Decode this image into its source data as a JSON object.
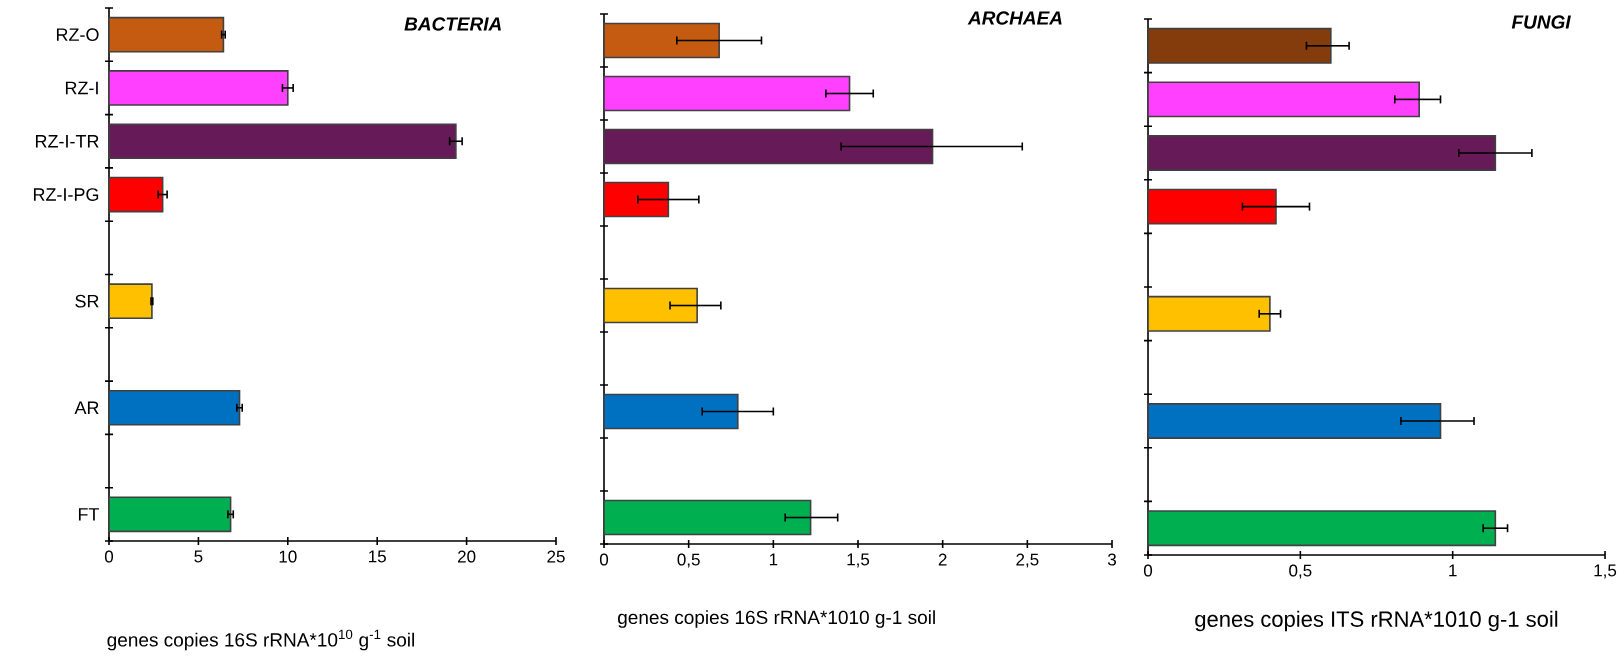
{
  "chart_data": [
    {
      "type": "bar",
      "orientation": "horizontal",
      "title": "BACTERIA",
      "xlabel": "genes copies 16S rRNA*10$^{10}$ g$^{-1}$ soil",
      "categories": [
        "RZ-O",
        "RZ-I",
        "RZ-I-TR",
        "RZ-I-PG",
        null,
        "SR",
        null,
        "AR",
        null,
        "FT"
      ],
      "values": [
        6.4,
        10.0,
        19.4,
        3.0,
        null,
        2.4,
        null,
        7.3,
        null,
        6.8
      ],
      "errors": [
        0.1,
        0.3,
        0.35,
        0.25,
        null,
        0.05,
        null,
        0.15,
        null,
        0.15
      ],
      "colors": [
        "#c55a11",
        "#ff40ff",
        "#661a57",
        "#ff0000",
        null,
        "#ffc000",
        null,
        "#0070c0",
        null,
        "#00b050"
      ],
      "xlim": [
        0,
        25
      ],
      "xticks": [
        0,
        5,
        10,
        15,
        20,
        25
      ]
    },
    {
      "type": "bar",
      "orientation": "horizontal",
      "title": "ARCHAEA",
      "xlabel": "genes copies 16S rRNA*1010 g-1 soil",
      "categories": [
        null,
        null,
        null,
        null,
        null,
        null,
        null,
        null,
        null,
        null
      ],
      "values": [
        0.68,
        1.45,
        1.94,
        0.38,
        null,
        0.55,
        null,
        0.79,
        null,
        1.22
      ],
      "errors": [
        [
          0.43,
          0.93
        ],
        [
          1.31,
          1.59
        ],
        [
          1.4,
          2.47
        ],
        [
          0.2,
          0.56
        ],
        null,
        [
          0.39,
          0.69
        ],
        null,
        [
          0.58,
          1.0
        ],
        null,
        [
          1.07,
          1.38
        ]
      ],
      "colors": [
        "#c55a11",
        "#ff40ff",
        "#661a57",
        "#ff0000",
        null,
        "#ffc000",
        null,
        "#0070c0",
        null,
        "#00b050"
      ],
      "xlim": [
        0,
        3
      ],
      "xticks": [
        0,
        {
          "value": 0.5,
          "label": "0,5"
        },
        1,
        {
          "value": 1.5,
          "label": "1,5"
        },
        2,
        {
          "value": 2.5,
          "label": "2,5"
        },
        3
      ]
    },
    {
      "type": "bar",
      "orientation": "horizontal",
      "title": "FUNGI",
      "xlabel": "genes copies ITS rRNA*1010 g-1 soil",
      "categories": [
        null,
        null,
        null,
        null,
        null,
        null,
        null,
        null,
        null,
        null
      ],
      "values": [
        0.6,
        0.89,
        1.14,
        0.42,
        null,
        0.4,
        null,
        0.96,
        null,
        1.14
      ],
      "errors": [
        [
          0.52,
          0.66
        ],
        [
          0.81,
          0.96
        ],
        [
          1.02,
          1.26
        ],
        [
          0.31,
          0.53
        ],
        null,
        [
          0.365,
          0.435
        ],
        null,
        [
          0.83,
          1.07
        ],
        null,
        [
          1.1,
          1.18
        ]
      ],
      "colors": [
        "#843c0c",
        "#ff40ff",
        "#661a57",
        "#ff0000",
        null,
        "#ffc000",
        null,
        "#0070c0",
        null,
        "#00b050"
      ],
      "xlim": [
        0,
        1.5
      ],
      "xticks": [
        0,
        {
          "value": 0.5,
          "label": "0,5"
        },
        1,
        {
          "value": 1.5,
          "label": "1,5"
        }
      ]
    }
  ]
}
